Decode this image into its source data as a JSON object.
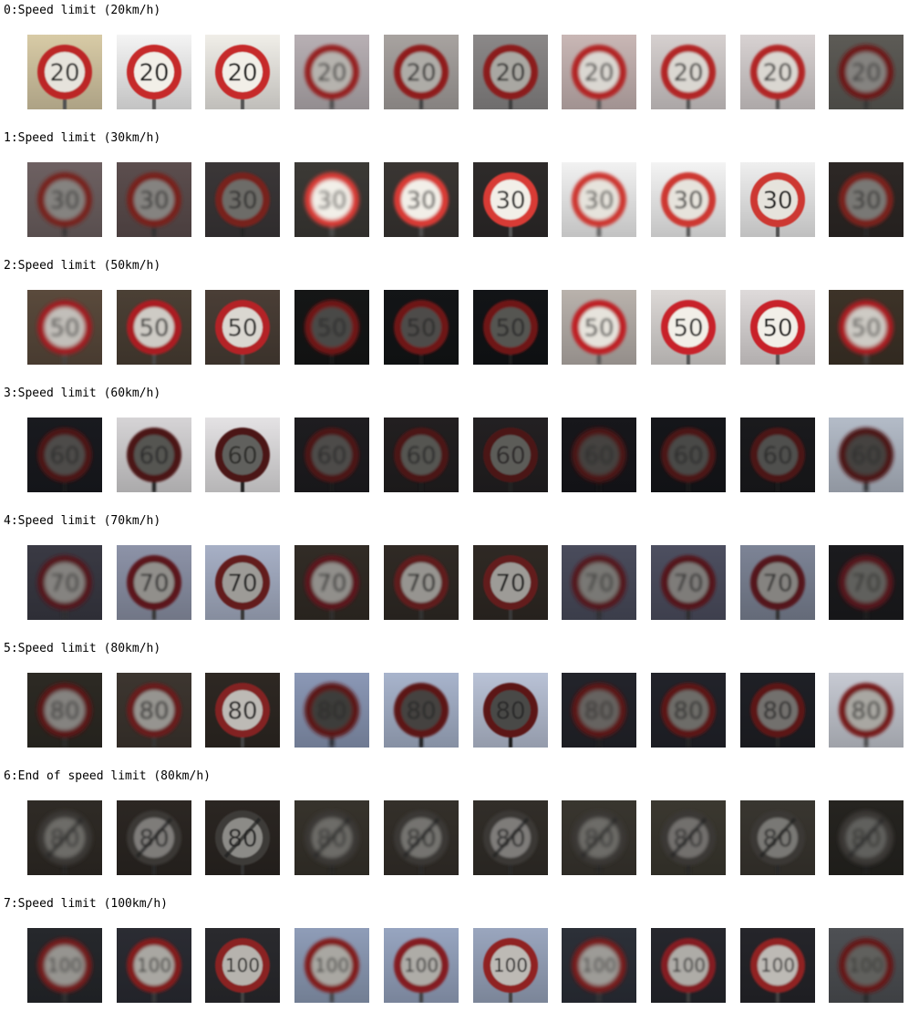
{
  "rows": [
    {
      "label": "0:Speed limit (20km/h)",
      "sign_number": "20",
      "ring_color": "#c62a2a",
      "signs": [
        {
          "bg": "#d8cba6",
          "brightness": 0.95,
          "blur": 0.8
        },
        {
          "bg": "#f4f4f4",
          "brightness": 1.0,
          "blur": 0.6
        },
        {
          "bg": "#f0eee8",
          "brightness": 1.0,
          "blur": 0.5
        },
        {
          "bg": "#b8b0b4",
          "brightness": 0.75,
          "blur": 1.8
        },
        {
          "bg": "#a8a3a0",
          "brightness": 0.72,
          "blur": 1.4
        },
        {
          "bg": "#8b8888",
          "brightness": 0.7,
          "blur": 1.0
        },
        {
          "bg": "#c9b7b5",
          "brightness": 0.9,
          "blur": 1.6
        },
        {
          "bg": "#d6d0cf",
          "brightness": 0.9,
          "blur": 1.4
        },
        {
          "bg": "#d8d2d2",
          "brightness": 0.9,
          "blur": 1.2
        },
        {
          "bg": "#5d5b56",
          "brightness": 0.55,
          "blur": 2.0
        }
      ]
    },
    {
      "label": "1:Speed limit (30km/h)",
      "sign_number": "30",
      "ring_color": "#d83a34",
      "signs": [
        {
          "bg": "#6e6162",
          "brightness": 0.55,
          "blur": 2.0
        },
        {
          "bg": "#5c4e4e",
          "brightness": 0.55,
          "blur": 1.8
        },
        {
          "bg": "#3b3738",
          "brightness": 0.45,
          "blur": 1.2
        },
        {
          "bg": "#3c3a36",
          "brightness": 1.0,
          "blur": 2.0
        },
        {
          "bg": "#3a3633",
          "brightness": 1.0,
          "blur": 1.6
        },
        {
          "bg": "#2e2b2a",
          "brightness": 1.0,
          "blur": 0.8
        },
        {
          "bg": "#f2f2f2",
          "brightness": 0.95,
          "blur": 1.8
        },
        {
          "bg": "#f4f4f4",
          "brightness": 0.95,
          "blur": 1.2
        },
        {
          "bg": "#efefef",
          "brightness": 0.95,
          "blur": 0.6
        },
        {
          "bg": "#2d2826",
          "brightness": 0.5,
          "blur": 1.8
        }
      ]
    },
    {
      "label": "2:Speed limit (50km/h)",
      "sign_number": "50",
      "ring_color": "#c8242a",
      "signs": [
        {
          "bg": "#5a4a3c",
          "brightness": 0.8,
          "blur": 2.0
        },
        {
          "bg": "#4b4035",
          "brightness": 0.85,
          "blur": 1.4
        },
        {
          "bg": "#4a3e36",
          "brightness": 0.9,
          "blur": 0.9
        },
        {
          "bg": "#151616",
          "brightness": 0.3,
          "blur": 1.8
        },
        {
          "bg": "#131517",
          "brightness": 0.32,
          "blur": 1.4
        },
        {
          "bg": "#121417",
          "brightness": 0.35,
          "blur": 1.0
        },
        {
          "bg": "#b9b2ac",
          "brightness": 0.95,
          "blur": 1.6
        },
        {
          "bg": "#dcd8d6",
          "brightness": 1.0,
          "blur": 0.9
        },
        {
          "bg": "#dedada",
          "brightness": 1.0,
          "blur": 0.5
        },
        {
          "bg": "#3d3328",
          "brightness": 0.85,
          "blur": 2.0
        }
      ]
    },
    {
      "label": "3:Speed limit (60km/h)",
      "sign_number": "60",
      "ring_color": "#8a2428",
      "signs": [
        {
          "bg": "#191a1f",
          "brightness": 0.32,
          "blur": 1.8
        },
        {
          "bg": "#d6d4d6",
          "brightness": 0.35,
          "blur": 1.4
        },
        {
          "bg": "#e4e2e4",
          "brightness": 0.4,
          "blur": 0.9
        },
        {
          "bg": "#1e1d20",
          "brightness": 0.32,
          "blur": 1.6
        },
        {
          "bg": "#221f20",
          "brightness": 0.35,
          "blur": 1.3
        },
        {
          "bg": "#232022",
          "brightness": 0.38,
          "blur": 0.9
        },
        {
          "bg": "#17171b",
          "brightness": 0.28,
          "blur": 2.0
        },
        {
          "bg": "#15161a",
          "brightness": 0.3,
          "blur": 1.6
        },
        {
          "bg": "#1a1a1d",
          "brightness": 0.33,
          "blur": 1.2
        },
        {
          "bg": "#b4bcc8",
          "brightness": 0.28,
          "blur": 2.0
        }
      ]
    },
    {
      "label": "4:Speed limit (70km/h)",
      "sign_number": "70",
      "ring_color": "#9a2a30",
      "signs": [
        {
          "bg": "#3a3a44",
          "brightness": 0.55,
          "blur": 2.0
        },
        {
          "bg": "#8d93a8",
          "brightness": 0.6,
          "blur": 1.3
        },
        {
          "bg": "#a7b0c6",
          "brightness": 0.65,
          "blur": 0.8
        },
        {
          "bg": "#322c26",
          "brightness": 0.6,
          "blur": 1.8
        },
        {
          "bg": "#302a25",
          "brightness": 0.62,
          "blur": 1.4
        },
        {
          "bg": "#2f2924",
          "brightness": 0.65,
          "blur": 0.9
        },
        {
          "bg": "#4a4c5c",
          "brightness": 0.5,
          "blur": 2.0
        },
        {
          "bg": "#4d4f60",
          "brightness": 0.52,
          "blur": 1.6
        },
        {
          "bg": "#7d8496",
          "brightness": 0.55,
          "blur": 1.2
        },
        {
          "bg": "#1b1b1e",
          "brightness": 0.4,
          "blur": 2.0
        }
      ]
    },
    {
      "label": "5:Speed limit (80km/h)",
      "sign_number": "80",
      "ring_color": "#a82a2c",
      "signs": [
        {
          "bg": "#2d2a24",
          "brightness": 0.55,
          "blur": 2.0
        },
        {
          "bg": "#3d3630",
          "brightness": 0.62,
          "blur": 1.5
        },
        {
          "bg": "#2e2823",
          "brightness": 0.78,
          "blur": 0.9
        },
        {
          "bg": "#8b98b6",
          "brightness": 0.25,
          "blur": 2.0
        },
        {
          "bg": "#a8b4cc",
          "brightness": 0.28,
          "blur": 1.4
        },
        {
          "bg": "#b9c2d6",
          "brightness": 0.3,
          "blur": 0.9
        },
        {
          "bg": "#23242b",
          "brightness": 0.42,
          "blur": 2.0
        },
        {
          "bg": "#22232a",
          "brightness": 0.45,
          "blur": 1.6
        },
        {
          "bg": "#1f2026",
          "brightness": 0.47,
          "blur": 1.3
        },
        {
          "bg": "#c7cad3",
          "brightness": 0.7,
          "blur": 1.8
        }
      ]
    },
    {
      "label": "6:End of speed limit (80km/h)",
      "sign_number": "80",
      "ring_color": "#6a6660",
      "signs": [
        {
          "bg": "#2f2b26",
          "brightness": 0.45,
          "blur": 2.0
        },
        {
          "bg": "#2c2723",
          "brightness": 0.52,
          "blur": 1.4
        },
        {
          "bg": "#2b2622",
          "brightness": 0.58,
          "blur": 0.9
        },
        {
          "bg": "#37332c",
          "brightness": 0.45,
          "blur": 2.0
        },
        {
          "bg": "#34302a",
          "brightness": 0.48,
          "blur": 1.6
        },
        {
          "bg": "#322e29",
          "brightness": 0.52,
          "blur": 1.2
        },
        {
          "bg": "#39362f",
          "brightness": 0.45,
          "blur": 2.0
        },
        {
          "bg": "#3b3830",
          "brightness": 0.47,
          "blur": 1.7
        },
        {
          "bg": "#393630",
          "brightness": 0.5,
          "blur": 1.4
        },
        {
          "bg": "#262420",
          "brightness": 0.4,
          "blur": 2.0
        }
      ]
    },
    {
      "label": "7:Speed limit (100km/h)",
      "sign_number": "100",
      "ring_color": "#b82a2c",
      "signs": [
        {
          "bg": "#26282c",
          "brightness": 0.62,
          "blur": 2.0
        },
        {
          "bg": "#2b2c33",
          "brightness": 0.7,
          "blur": 1.5
        },
        {
          "bg": "#2a2a2e",
          "brightness": 0.75,
          "blur": 0.8
        },
        {
          "bg": "#8f9db8",
          "brightness": 0.7,
          "blur": 1.8
        },
        {
          "bg": "#97a5c0",
          "brightness": 0.72,
          "blur": 1.4
        },
        {
          "bg": "#9aa6be",
          "brightness": 0.78,
          "blur": 0.9
        },
        {
          "bg": "#2c3038",
          "brightness": 0.65,
          "blur": 2.0
        },
        {
          "bg": "#26272d",
          "brightness": 0.72,
          "blur": 1.4
        },
        {
          "bg": "#25252a",
          "brightness": 0.78,
          "blur": 1.0
        },
        {
          "bg": "#4e5054",
          "brightness": 0.4,
          "blur": 2.0
        }
      ]
    }
  ]
}
